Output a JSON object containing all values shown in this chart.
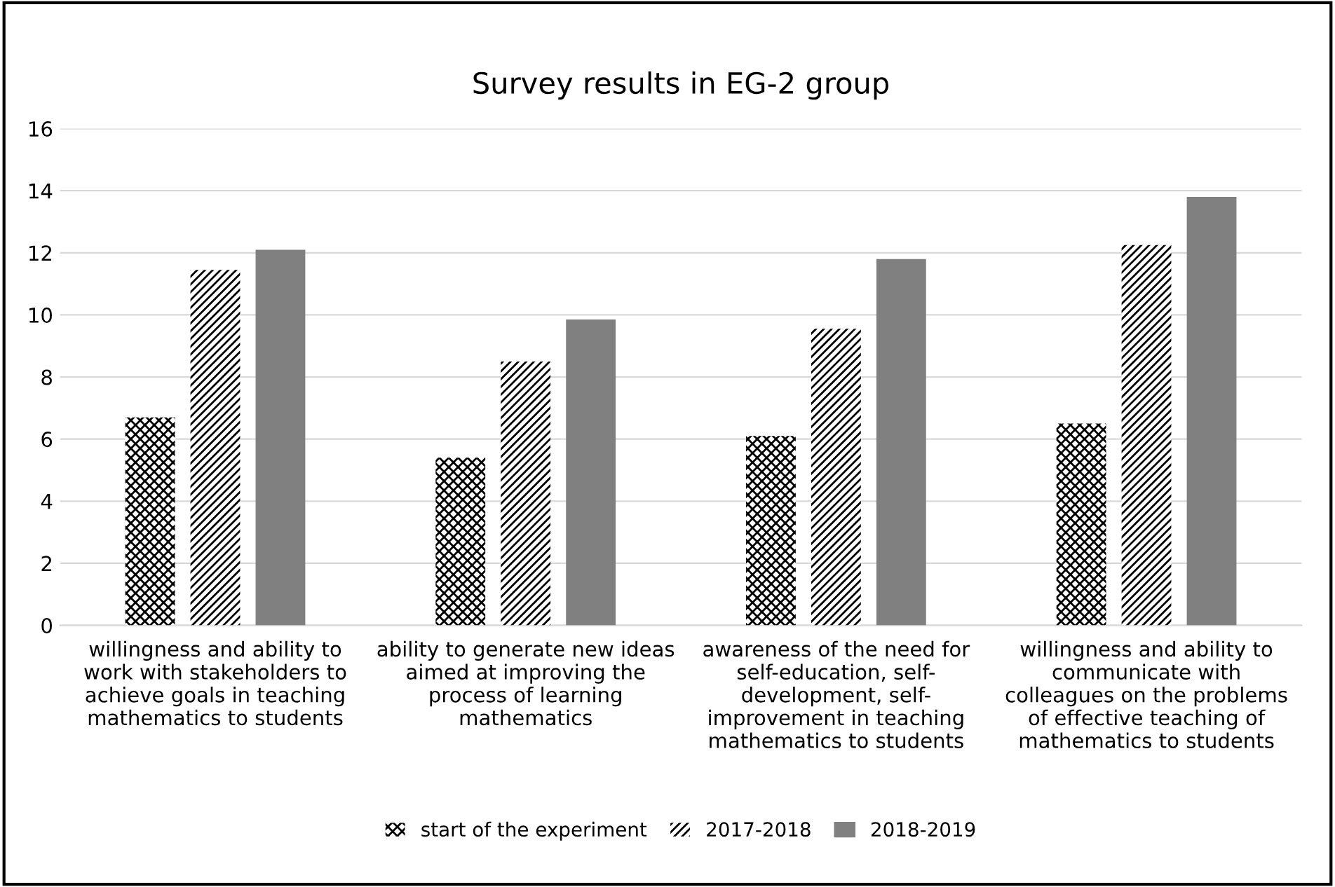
{
  "chart_data": {
    "type": "bar",
    "title": "Survey results in EG-2 group",
    "categories": [
      "willingness and ability to\nwork with stakeholders to\nachieve goals in teaching\nmathematics to students",
      "ability to generate new ideas\naimed at improving the\nprocess of learning\nmathematics",
      "awareness of the need for\nself-education, self-\ndevelopment, self-\nimprovement in teaching\nmathematics to students",
      "willingness and ability to\ncommunicate with\ncolleagues on the problems\nof effective teaching of\nmathematics to students"
    ],
    "series": [
      {
        "name": "start of the experiment",
        "color": "#000000",
        "values": [
          6.7,
          5.4,
          6.1,
          6.5
        ]
      },
      {
        "name": "2017-2018",
        "color": "#000000",
        "values": [
          11.45,
          8.5,
          9.55,
          12.25
        ]
      },
      {
        "name": "2018-2019",
        "color": "#808080",
        "values": [
          12.1,
          9.85,
          11.8,
          13.8
        ]
      }
    ],
    "ylim": [
      0,
      16
    ],
    "yticks": [
      0,
      2,
      4,
      6,
      8,
      10,
      12,
      14,
      16
    ],
    "grid": "y",
    "legend": "bottom"
  }
}
